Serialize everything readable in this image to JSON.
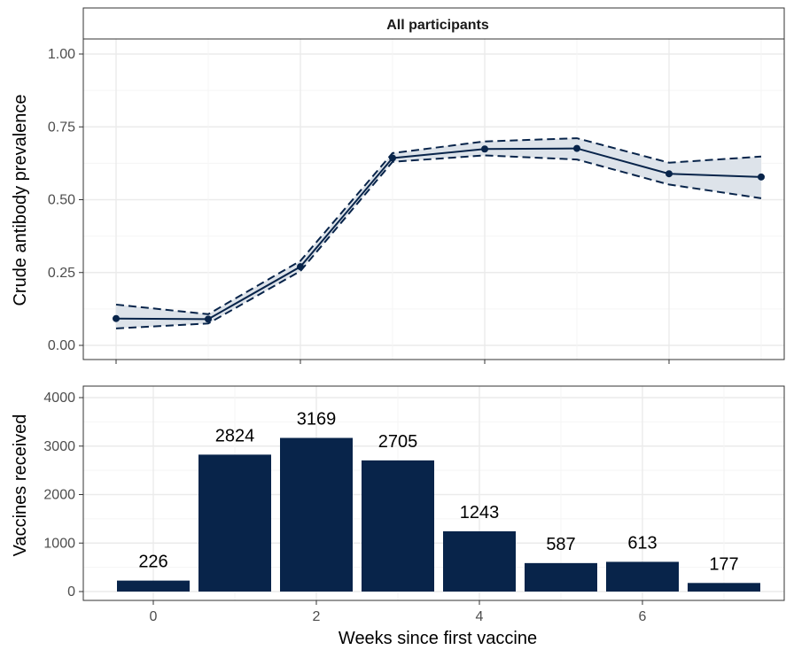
{
  "colors": {
    "series": "#08244a",
    "band": "#dde3ea",
    "panel_border": "#333333",
    "grid_major": "#ebebeb",
    "grid_minor": "#f5f5f5",
    "tick_text": "#4d4d4d"
  },
  "chart_data": [
    {
      "type": "line",
      "strip_title": "All participants",
      "ylabel": "Crude antibody prevalence",
      "ylim": [
        0,
        1.05
      ],
      "y_ticks": [
        "0.00",
        "0.25",
        "0.50",
        "0.75",
        "1.00"
      ],
      "grid": true,
      "x": [
        0,
        1,
        2,
        3,
        4,
        5,
        6,
        7
      ],
      "series": [
        {
          "estimate": [
            0.092,
            0.09,
            0.27,
            0.643,
            0.674,
            0.676,
            0.589,
            0.578
          ],
          "lower": [
            0.058,
            0.075,
            0.255,
            0.63,
            0.652,
            0.638,
            0.552,
            0.505
          ],
          "upper": [
            0.14,
            0.107,
            0.29,
            0.66,
            0.7,
            0.711,
            0.627,
            0.648
          ]
        }
      ]
    },
    {
      "type": "bar",
      "xlabel": "Weeks since first vaccine",
      "ylabel": "Vaccines received",
      "ylim": [
        0,
        4200
      ],
      "y_ticks": [
        "0",
        "1000",
        "2000",
        "3000",
        "4000"
      ],
      "x_ticks": [
        "0",
        "2",
        "4",
        "6"
      ],
      "grid": true,
      "categories": [
        0,
        1,
        2,
        3,
        4,
        5,
        6,
        7
      ],
      "values": [
        226,
        2824,
        3169,
        2705,
        1243,
        587,
        613,
        177
      ],
      "labels": [
        "226",
        "2824",
        "3169",
        "2705",
        "1243",
        "587",
        "613",
        "177"
      ]
    }
  ]
}
